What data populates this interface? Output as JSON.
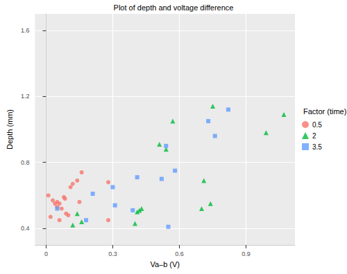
{
  "chart_data": {
    "type": "scatter",
    "title": "Plot of depth and voltage difference",
    "x_label": "Va–b (V)",
    "y_label": "Depth (mm)",
    "legend_title": "Factor (time)",
    "legend": "right",
    "grid": true,
    "xlim": [
      -0.05,
      1.12
    ],
    "xticks": [
      0,
      0.3,
      0.6,
      0.9
    ],
    "ylim": [
      0.3,
      1.7
    ],
    "yticks": [
      0.4,
      0.8,
      1.2,
      1.6
    ],
    "series": [
      {
        "name": "0.5",
        "color": "#F8766D",
        "marker": "circle",
        "x": [
          0.01,
          0.02,
          0.03,
          0.04,
          0.05,
          0.05,
          0.06,
          0.06,
          0.07,
          0.08,
          0.085,
          0.09,
          0.1,
          0.11,
          0.12,
          0.14,
          0.15,
          0.16,
          0.28,
          0.28
        ],
        "values": [
          0.6,
          0.47,
          0.57,
          0.55,
          0.53,
          0.56,
          0.55,
          0.45,
          0.52,
          0.59,
          0.58,
          0.49,
          0.48,
          0.65,
          0.67,
          0.69,
          0.56,
          0.74,
          0.68,
          0.45
        ]
      },
      {
        "name": "2",
        "color": "#00BA38",
        "marker": "triangle",
        "x": [
          0.12,
          0.14,
          0.16,
          0.4,
          0.41,
          0.42,
          0.43,
          0.51,
          0.54,
          0.57,
          0.7,
          0.71,
          0.74,
          0.75,
          0.99,
          1.07
        ],
        "values": [
          0.42,
          0.49,
          0.44,
          0.43,
          0.5,
          0.51,
          0.52,
          0.91,
          0.88,
          1.05,
          0.52,
          0.69,
          0.55,
          1.14,
          0.98,
          1.09
        ]
      },
      {
        "name": "3.5",
        "color": "#619CFF",
        "marker": "square",
        "x": [
          0.05,
          0.18,
          0.21,
          0.3,
          0.31,
          0.39,
          0.41,
          0.52,
          0.54,
          0.55,
          0.58,
          0.73,
          0.76,
          0.82
        ],
        "values": [
          0.52,
          0.45,
          0.61,
          0.65,
          0.54,
          0.51,
          0.71,
          0.7,
          0.9,
          0.41,
          0.75,
          1.05,
          0.96,
          1.12
        ]
      }
    ]
  }
}
